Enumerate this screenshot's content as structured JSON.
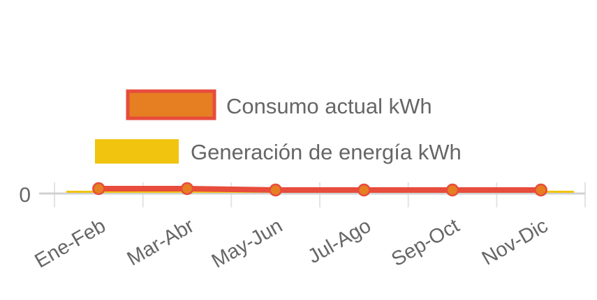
{
  "chart_data": {
    "type": "line",
    "title": "",
    "xlabel": "",
    "ylabel": "",
    "categories": [
      "Ene-Feb",
      "Mar-Abr",
      "May-Jun",
      "Jul-Ago",
      "Sep-Oct",
      "Nov-Dic"
    ],
    "y_ticks": [
      "0"
    ],
    "ylim": [
      0,
      10
    ],
    "grid": true,
    "legend_placement": "top",
    "series": [
      {
        "name": "Consumo actual kWh",
        "type": "line",
        "values": [
          0.15,
          0.15,
          0.1,
          0.1,
          0.1,
          0.1
        ],
        "color": "#e74c3c",
        "point_color": "#e67e22"
      },
      {
        "name": "Generación de energía kWh",
        "type": "bar",
        "values": [
          0,
          0,
          0,
          0,
          0,
          0
        ],
        "color": "#f1c40f"
      }
    ]
  }
}
